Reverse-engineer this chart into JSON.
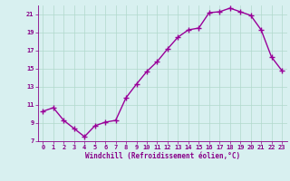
{
  "x": [
    0,
    1,
    2,
    3,
    4,
    5,
    6,
    7,
    8,
    9,
    10,
    11,
    12,
    13,
    14,
    15,
    16,
    17,
    18,
    19,
    20,
    21,
    22,
    23
  ],
  "y": [
    10.3,
    10.7,
    9.3,
    8.4,
    7.5,
    8.7,
    9.1,
    9.3,
    11.8,
    13.3,
    14.7,
    15.8,
    17.2,
    18.5,
    19.3,
    19.5,
    21.2,
    21.3,
    21.7,
    21.3,
    20.9,
    19.3,
    16.3,
    14.8
  ],
  "line_color": "#990099",
  "marker": "+",
  "marker_color": "#990099",
  "bg_color": "#d8f0f0",
  "grid_color": "#b0d8cc",
  "xlabel": "Windchill (Refroidissement éolien,°C)",
  "xlabel_color": "#880088",
  "tick_color": "#880088",
  "ylim": [
    7,
    22
  ],
  "xlim": [
    -0.5,
    23.5
  ],
  "yticks": [
    7,
    9,
    11,
    13,
    15,
    17,
    19,
    21
  ],
  "xticks": [
    0,
    1,
    2,
    3,
    4,
    5,
    6,
    7,
    8,
    9,
    10,
    11,
    12,
    13,
    14,
    15,
    16,
    17,
    18,
    19,
    20,
    21,
    22,
    23
  ],
  "linewidth": 1.0,
  "markersize": 4,
  "marker_linewidth": 1.0
}
